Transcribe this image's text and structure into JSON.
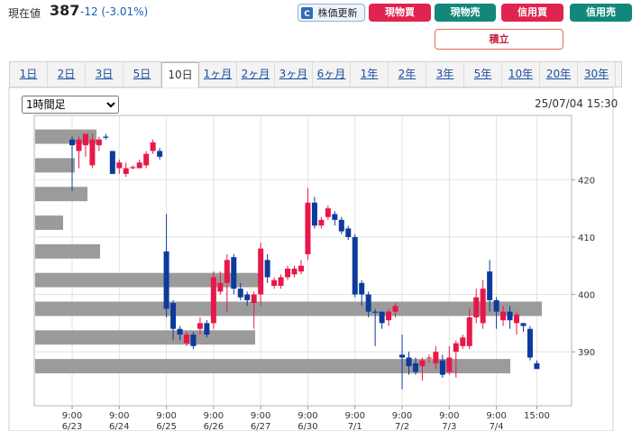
{
  "header": {
    "price_label": "現在値",
    "price": "387",
    "change": "-12 (-3.01%)"
  },
  "buttons": [
    "株価更新",
    "現物買",
    "現物売",
    "信用買",
    "信用売",
    "積立"
  ],
  "tabs": [
    "1日",
    "2日",
    "3日",
    "5日",
    "10日",
    "1ヶ月",
    "2ヶ月",
    "3ヶ月",
    "6ヶ月",
    "1年",
    "2年",
    "3年",
    "5年",
    "10年",
    "20年",
    "30年"
  ],
  "active_tab": "10日",
  "interval_select": "1時間足",
  "timestamp": "25/07/04 15:30",
  "chart_data": {
    "type": "candlestick",
    "categories": [
      "9:00",
      null,
      null,
      null,
      null,
      null,
      null,
      "9:00",
      null,
      null,
      null,
      null,
      null,
      null,
      "9:00",
      null,
      null,
      null,
      null,
      null,
      null,
      "9:00",
      null,
      null,
      null,
      null,
      null,
      null,
      "9:00",
      null,
      null,
      null,
      null,
      null,
      null,
      "9:00",
      null,
      null,
      null,
      null,
      null,
      null,
      "9:00",
      null,
      null,
      null,
      null,
      null,
      null,
      "9:00",
      null,
      null,
      null,
      null,
      null,
      null,
      "9:00",
      null,
      null,
      null,
      null,
      null,
      null,
      "9:00",
      null,
      null,
      null,
      null,
      null,
      "15:00"
    ],
    "category_dates": [
      "6/23",
      null,
      null,
      null,
      null,
      null,
      null,
      "6/24",
      null,
      null,
      null,
      null,
      null,
      null,
      "6/25",
      null,
      null,
      null,
      null,
      null,
      null,
      "6/26",
      null,
      null,
      null,
      null,
      null,
      null,
      "6/27",
      null,
      null,
      null,
      null,
      null,
      null,
      "6/30",
      null,
      null,
      null,
      null,
      null,
      null,
      "7/1",
      null,
      null,
      null,
      null,
      null,
      null,
      "7/2",
      null,
      null,
      null,
      null,
      null,
      null,
      "7/3",
      null,
      null,
      null,
      null,
      null,
      null,
      "7/4",
      null,
      null,
      null,
      null,
      null,
      null
    ],
    "open": [
      427,
      425,
      426,
      422.5,
      426,
      427.5,
      425,
      422,
      421,
      422,
      422,
      422.5,
      425,
      425,
      407.5,
      398.5,
      394,
      391.5,
      393,
      394,
      395,
      395,
      400.5,
      402,
      406.5,
      401,
      400,
      398.5,
      400,
      406,
      401.5,
      401.5,
      403,
      403.5,
      404,
      407,
      416,
      412,
      413.5,
      414,
      413,
      411.5,
      410,
      402,
      400,
      397,
      397,
      395.5,
      397,
      389.5,
      389,
      388,
      387.5,
      389,
      388,
      388.5,
      386.5,
      390,
      391,
      391,
      396,
      395,
      404,
      399,
      395.5,
      397,
      395,
      395,
      394,
      388
    ],
    "high": [
      427.5,
      427.5,
      428,
      428,
      427.5,
      428,
      425,
      423.5,
      423,
      422.5,
      423.5,
      425,
      427,
      425.5,
      414,
      399,
      394.5,
      393.5,
      393.5,
      396,
      395.5,
      404,
      404,
      407,
      407,
      402,
      400.5,
      400.5,
      409,
      407,
      403,
      403.5,
      405,
      405,
      406,
      418.5,
      417,
      413.5,
      415.5,
      414.5,
      413.5,
      412,
      410.5,
      402.5,
      400.5,
      397.5,
      397,
      397.5,
      398.5,
      393,
      390,
      389,
      389,
      389.5,
      391,
      389.5,
      391,
      392,
      393,
      397.5,
      401,
      402.5,
      406,
      399.5,
      398,
      398,
      397,
      395,
      394.5,
      388.5
    ],
    "low": [
      418,
      422,
      424,
      422,
      425,
      427,
      421,
      421,
      420.5,
      421.8,
      422,
      422,
      424.5,
      423.5,
      396,
      392,
      392,
      391,
      390.5,
      393,
      392.5,
      394,
      400,
      397,
      400,
      399,
      398,
      394,
      398,
      402,
      401,
      401,
      402.5,
      403,
      403.5,
      406,
      411.5,
      411.5,
      413,
      412,
      410.5,
      409.5,
      399.5,
      398,
      396,
      391,
      394,
      394.5,
      396,
      383.5,
      386,
      386,
      385,
      388,
      387,
      385.5,
      386,
      385.5,
      390.5,
      390.5,
      395,
      394,
      397,
      394,
      394.5,
      394,
      393,
      393.5,
      388.5,
      387
    ],
    "close": [
      426,
      427,
      428,
      427,
      427,
      427.3,
      421,
      423,
      422,
      422.2,
      423,
      424.5,
      426.5,
      424,
      397.5,
      394,
      393,
      393,
      391,
      395,
      393,
      403,
      402,
      406,
      401,
      399.5,
      399,
      400,
      408,
      403,
      402.5,
      403,
      404.5,
      404.5,
      405,
      416,
      412,
      413,
      415,
      413,
      411,
      410,
      400,
      400,
      397,
      396.8,
      395,
      397,
      398,
      389,
      387.5,
      386.5,
      388.5,
      389,
      390,
      386,
      389,
      391.5,
      392.5,
      396,
      399.5,
      401,
      399,
      397,
      397,
      395.5,
      396.5,
      394.5,
      389,
      387
    ],
    "up_color": "#e8174a",
    "down_color": "#0d3b9c",
    "ylim": [
      380.6,
      431.2
    ],
    "yticks": [
      390,
      400,
      410,
      420
    ],
    "grid": true,
    "volume_profile": {
      "bins": [
        385,
        390,
        395,
        400,
        405,
        410,
        415,
        420,
        425,
        430
      ],
      "volumes": [
        527,
        244,
        562,
        252,
        72,
        31,
        58,
        44,
        68
      ],
      "color": "#9b9b9b"
    }
  }
}
